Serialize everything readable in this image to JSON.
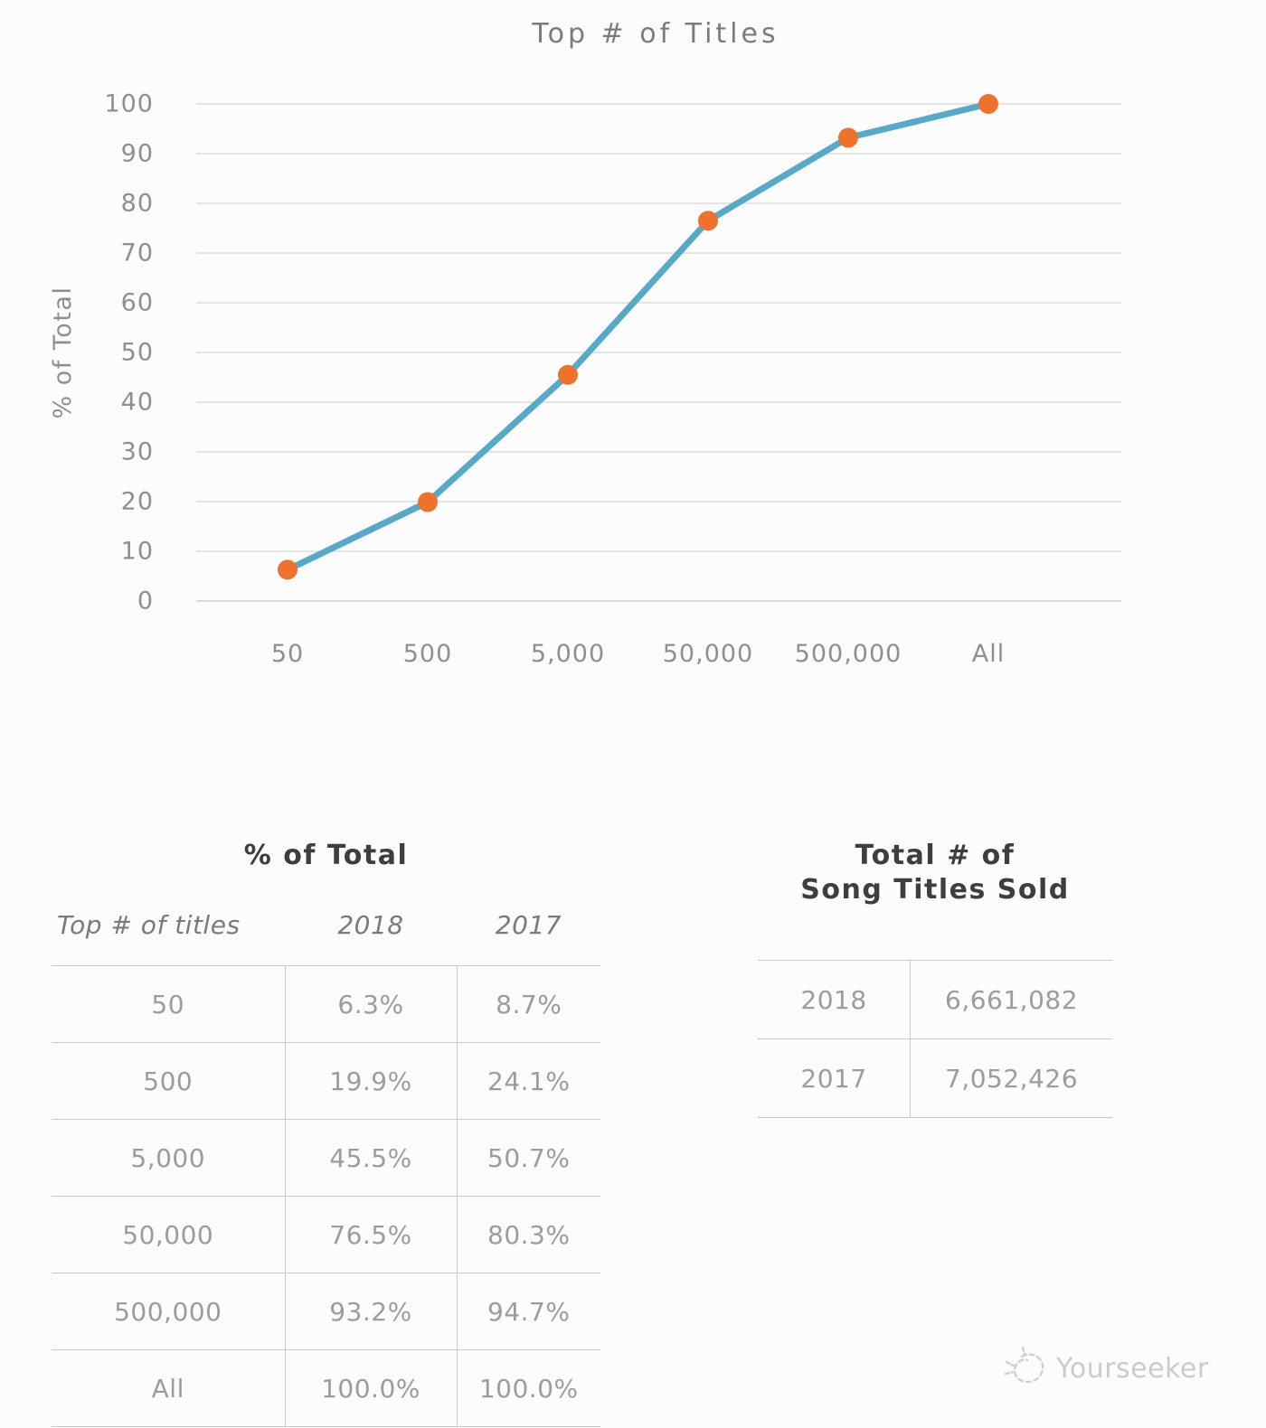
{
  "chart_data": {
    "type": "line",
    "title": "Top # of Titles",
    "xlabel": "",
    "ylabel": "% of Total",
    "categories": [
      "50",
      "500",
      "5,000",
      "50,000",
      "500,000",
      "All"
    ],
    "series": [
      {
        "name": "2018",
        "values": [
          6.3,
          19.9,
          45.5,
          76.5,
          93.2,
          100.0
        ]
      }
    ],
    "ylim": [
      0,
      100
    ],
    "ytick_step": 10,
    "grid": true,
    "legend_position": "none",
    "line_color": "#57a9c7",
    "marker_color": "#ed722e",
    "grid_color": "#dcdcdc",
    "axis_text_color": "#8f8f8f"
  },
  "tables": {
    "percent": {
      "title": "% of Total",
      "columns": [
        "Top # of titles",
        "2018",
        "2017"
      ],
      "rows": [
        [
          "50",
          "6.3%",
          "8.7%"
        ],
        [
          "500",
          "19.9%",
          "24.1%"
        ],
        [
          "5,000",
          "45.5%",
          "50.7%"
        ],
        [
          "50,000",
          "76.5%",
          "80.3%"
        ],
        [
          "500,000",
          "93.2%",
          "94.7%"
        ],
        [
          "All",
          "100.0%",
          "100.0%"
        ]
      ]
    },
    "totals": {
      "title_line1": "Total # of",
      "title_line2": "Song Titles Sold",
      "rows": [
        [
          "2018",
          "6,661,082"
        ],
        [
          "2017",
          "7,052,426"
        ]
      ]
    }
  },
  "watermark": {
    "icon": "sketch-circle-icon",
    "text": "Yourseeker"
  }
}
